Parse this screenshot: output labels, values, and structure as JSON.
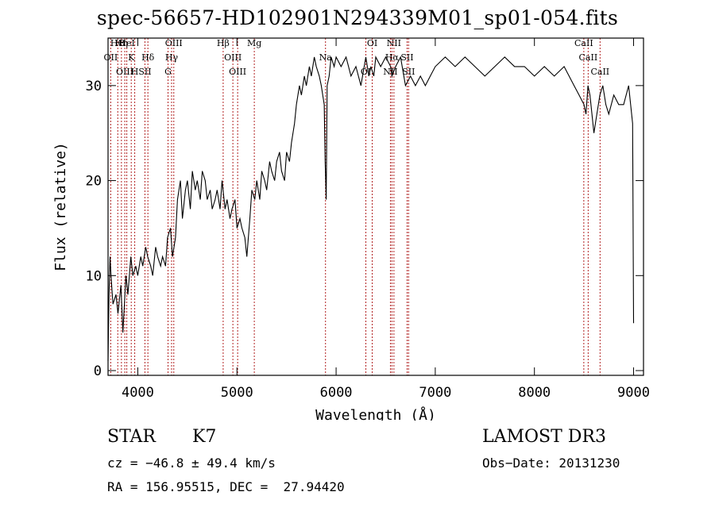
{
  "chart_data": {
    "type": "line",
    "title": "spec-56657-HD102901N294339M01_sp01-054.fits",
    "xlabel": "Wavelength (Å)",
    "ylabel": "Flux (relative)",
    "xlim": [
      3700,
      9100
    ],
    "ylim": [
      -0.5,
      35
    ],
    "xticks": [
      4000,
      5000,
      6000,
      7000,
      8000,
      9000
    ],
    "yticks": [
      0,
      10,
      20,
      30
    ],
    "grid": false,
    "line_color": "#000000",
    "marker_line_color": "#b22222",
    "series": [
      {
        "x": [
          3700,
          3710,
          3720,
          3730,
          3750,
          3780,
          3800,
          3830,
          3850,
          3880,
          3900,
          3930,
          3950,
          3980,
          4000,
          4030,
          4050,
          4080,
          4100,
          4130,
          4150,
          4180,
          4200,
          4230,
          4250,
          4280,
          4300,
          4330,
          4350,
          4380,
          4400,
          4430,
          4450,
          4480,
          4500,
          4530,
          4550,
          4580,
          4600,
          4630,
          4650,
          4680,
          4700,
          4730,
          4750,
          4780,
          4800,
          4830,
          4850,
          4880,
          4900,
          4930,
          4950,
          4980,
          5000,
          5030,
          5050,
          5080,
          5100,
          5130,
          5150,
          5180,
          5200,
          5230,
          5250,
          5280,
          5300,
          5330,
          5350,
          5380,
          5400,
          5430,
          5450,
          5480,
          5500,
          5530,
          5550,
          5580,
          5600,
          5630,
          5650,
          5680,
          5700,
          5730,
          5750,
          5780,
          5800,
          5830,
          5850,
          5880,
          5890,
          5900,
          5910,
          5930,
          5950,
          5980,
          6000,
          6050,
          6100,
          6150,
          6200,
          6250,
          6300,
          6330,
          6350,
          6380,
          6400,
          6450,
          6500,
          6550,
          6563,
          6600,
          6650,
          6700,
          6750,
          6800,
          6850,
          6900,
          6950,
          7000,
          7100,
          7200,
          7300,
          7400,
          7500,
          7600,
          7700,
          7800,
          7900,
          8000,
          8100,
          8200,
          8300,
          8400,
          8450,
          8500,
          8520,
          8540,
          8560,
          8600,
          8630,
          8660,
          8690,
          8720,
          8750,
          8800,
          8850,
          8900,
          8950,
          8990,
          9000
        ],
        "y": [
          1,
          8,
          12,
          10,
          7,
          8,
          6,
          9,
          4,
          10,
          8,
          12,
          10,
          11,
          10,
          12,
          11,
          13,
          12,
          11,
          10,
          13,
          12,
          11,
          12,
          11,
          14,
          15,
          12,
          14,
          18,
          20,
          16,
          19,
          20,
          17,
          21,
          19,
          20,
          18,
          21,
          20,
          18,
          19,
          17,
          18,
          19,
          17,
          20,
          17,
          18,
          16,
          17,
          18,
          15,
          16,
          15,
          14,
          12,
          16,
          19,
          18,
          20,
          18,
          21,
          20,
          19,
          22,
          21,
          20,
          22,
          23,
          21,
          20,
          23,
          22,
          24,
          26,
          28,
          30,
          29,
          31,
          30,
          32,
          31,
          33,
          32,
          31,
          30,
          28,
          22,
          18,
          30,
          31,
          33,
          32,
          33,
          32,
          33,
          31,
          32,
          30,
          33,
          31,
          32,
          31,
          33,
          32,
          33,
          32,
          31,
          32,
          33,
          30,
          31,
          30,
          31,
          30,
          31,
          32,
          33,
          32,
          33,
          32,
          31,
          32,
          33,
          32,
          32,
          31,
          32,
          31,
          32,
          30,
          29,
          28,
          27,
          30,
          29,
          25,
          27,
          29,
          30,
          28,
          27,
          29,
          28,
          28,
          30,
          26,
          5
        ]
      }
    ],
    "line_markers": [
      {
        "label": "HΘ",
        "x": 3798
      },
      {
        "label": "OII",
        "x": 3727
      },
      {
        "label": "OIII",
        "x": 3869
      },
      {
        "label": "HeI",
        "x": 3889
      },
      {
        "label": "K",
        "x": 3934
      },
      {
        "label": "H",
        "x": 3969
      },
      {
        "label": "Hη",
        "x": 3835
      },
      {
        "label": "Hδ",
        "x": 4102
      },
      {
        "label": "SII",
        "x": 4072
      },
      {
        "label": "OIII",
        "x": 4363
      },
      {
        "label": "Hγ",
        "x": 4341
      },
      {
        "label": "G",
        "x": 4305
      },
      {
        "label": "Hβ",
        "x": 4861
      },
      {
        "label": "OIII",
        "x": 4959
      },
      {
        "label": "OIII",
        "x": 5007
      },
      {
        "label": "Mg",
        "x": 5175
      },
      {
        "label": "Na",
        "x": 5893
      },
      {
        "label": "OI",
        "x": 6300
      },
      {
        "label": "OI",
        "x": 6364
      },
      {
        "label": "Hα",
        "x": 6563
      },
      {
        "label": "NII",
        "x": 6548
      },
      {
        "label": "NII",
        "x": 6583
      },
      {
        "label": "SII",
        "x": 6716
      },
      {
        "label": "SII",
        "x": 6731
      },
      {
        "label": "CaII",
        "x": 8498
      },
      {
        "label": "CaII",
        "x": 8542
      },
      {
        "label": "CaII",
        "x": 8662
      }
    ]
  },
  "info": {
    "object_class": "STAR",
    "subclass": "K7",
    "survey": "LAMOST DR3",
    "cz": "cz = −46.8 ± 49.4 km/s",
    "obs_date": "Obs−Date: 20131230",
    "radec": "RA = 156.95515, DEC =  27.94420"
  }
}
